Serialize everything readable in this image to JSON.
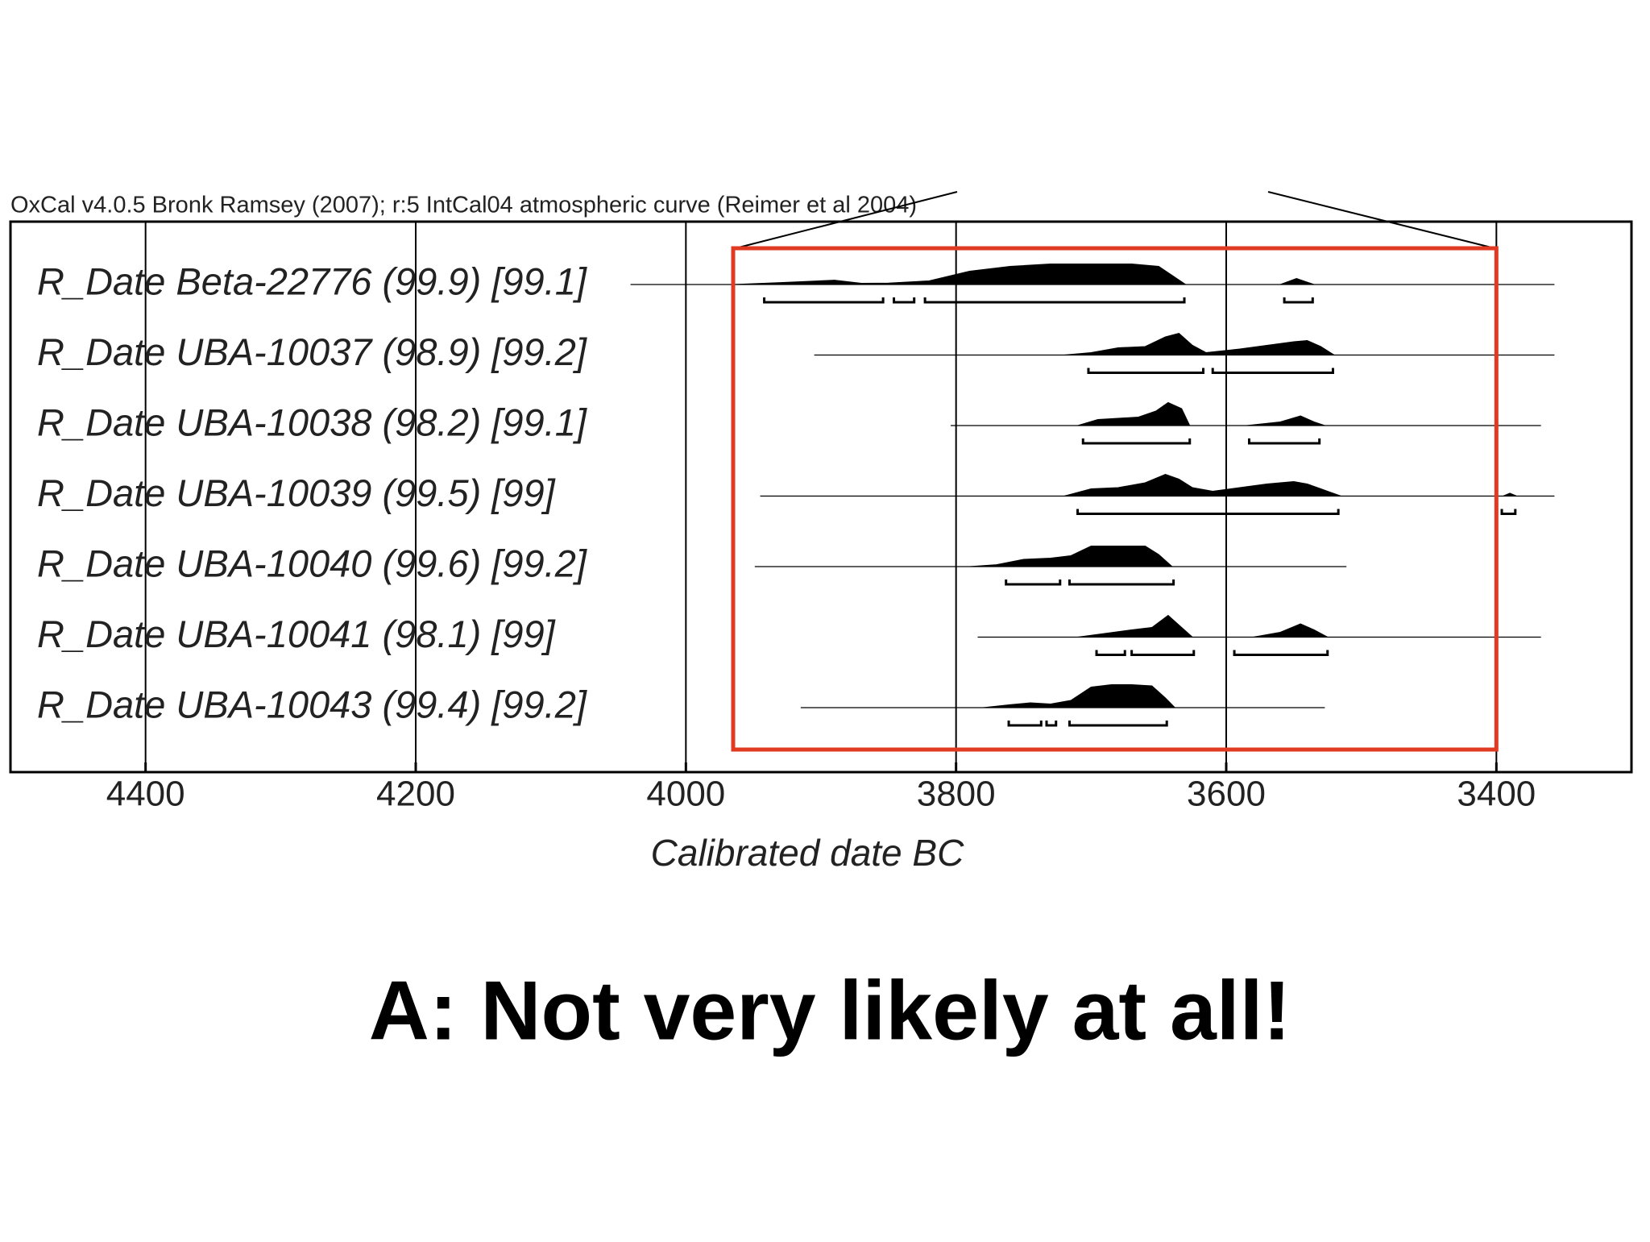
{
  "chart_data": {
    "type": "oxcal",
    "header": "OxCal v4.0.5 Bronk Ramsey (2007); r:5 IntCal04 atmospheric curve (Reimer et al 2004)",
    "xlabel": "Calibrated date BC",
    "xlim": [
      4500,
      3300
    ],
    "xticks": [
      4400,
      4200,
      4000,
      3800,
      3600,
      3400
    ],
    "grid": true,
    "color": "#000000",
    "highlight": [
      3965,
      3400
    ],
    "highlight_color": "#e03a22",
    "rows": [
      {
        "label": "R_Date Beta-22776 (99.9) [99.1]",
        "extent": [
          4041,
          3357
        ],
        "ranges": [
          [
            3942,
            3854
          ],
          [
            3846,
            3831
          ],
          [
            3823,
            3631
          ],
          [
            3557,
            3536
          ]
        ],
        "profile": {
          "x": [
            3965,
            3930,
            3890,
            3870,
            3850,
            3820,
            3790,
            3760,
            3730,
            3700,
            3670,
            3650,
            3630,
            3600,
            3560,
            3548,
            3535
          ],
          "values": [
            0,
            0.08,
            0.18,
            0.05,
            0.06,
            0.15,
            0.55,
            0.75,
            0.85,
            0.85,
            0.85,
            0.75,
            0,
            null,
            0,
            0.25,
            0
          ]
        }
      },
      {
        "label": "R_Date UBA-10037 (98.9) [99.2]",
        "extent": [
          3905,
          3357
        ],
        "ranges": [
          [
            3702,
            3617
          ],
          [
            3610,
            3521
          ]
        ],
        "profile": {
          "x": [
            3720,
            3700,
            3680,
            3660,
            3645,
            3635,
            3625,
            3615,
            3590,
            3570,
            3550,
            3540,
            3530,
            3520
          ],
          "values": [
            0,
            0.1,
            0.3,
            0.35,
            0.75,
            0.9,
            0.4,
            0.1,
            0.25,
            0.4,
            0.55,
            0.6,
            0.35,
            0
          ]
        }
      },
      {
        "label": "R_Date UBA-10038 (98.2) [99.1]",
        "extent": [
          3804,
          3367
        ],
        "ranges": [
          [
            3706,
            3627
          ],
          [
            3583,
            3531
          ]
        ],
        "profile": {
          "x": [
            3710,
            3695,
            3680,
            3665,
            3652,
            3643,
            3633,
            3627,
            3600,
            3585,
            3560,
            3545,
            3535,
            3527
          ],
          "values": [
            0,
            0.25,
            0.3,
            0.35,
            0.6,
            0.95,
            0.7,
            0,
            null,
            0,
            0.15,
            0.4,
            0.15,
            0
          ]
        }
      },
      {
        "label": "R_Date UBA-10039 (99.5) [99]",
        "extent": [
          3945,
          3357
        ],
        "ranges": [
          [
            3710,
            3517
          ],
          [
            3396,
            3386
          ]
        ],
        "profile": {
          "x": [
            3720,
            3700,
            3680,
            3660,
            3645,
            3635,
            3625,
            3610,
            3590,
            3570,
            3550,
            3540,
            3530,
            3515,
            3400,
            3395,
            3390,
            3385
          ],
          "values": [
            0,
            0.3,
            0.35,
            0.55,
            0.9,
            0.7,
            0.35,
            0.2,
            0.35,
            0.5,
            0.6,
            0.5,
            0.3,
            0,
            null,
            0,
            0.12,
            0
          ]
        }
      },
      {
        "label": "R_Date UBA-10040 (99.6) [99.2]",
        "extent": [
          3949,
          3511
        ],
        "ranges": [
          [
            3763,
            3723
          ],
          [
            3716,
            3639
          ]
        ],
        "profile": {
          "x": [
            3790,
            3770,
            3750,
            3730,
            3715,
            3700,
            3680,
            3660,
            3650,
            3640
          ],
          "values": [
            0,
            0.08,
            0.3,
            0.35,
            0.45,
            0.85,
            0.85,
            0.85,
            0.5,
            0
          ]
        }
      },
      {
        "label": "R_Date UBA-10041 (98.1) [99]",
        "extent": [
          3784,
          3367
        ],
        "ranges": [
          [
            3696,
            3675
          ],
          [
            3670,
            3624
          ],
          [
            3594,
            3525
          ]
        ],
        "profile": {
          "x": [
            3710,
            3690,
            3670,
            3655,
            3643,
            3635,
            3625,
            3600,
            3580,
            3560,
            3545,
            3535,
            3525
          ],
          "values": [
            0,
            0.15,
            0.3,
            0.4,
            0.9,
            0.5,
            0,
            null,
            0,
            0.2,
            0.55,
            0.3,
            0
          ]
        }
      },
      {
        "label": "R_Date UBA-10043 (99.4) [99.2]",
        "extent": [
          3915,
          3527
        ],
        "ranges": [
          [
            3761,
            3737
          ],
          [
            3733,
            3726
          ],
          [
            3716,
            3644
          ]
        ],
        "profile": {
          "x": [
            3780,
            3760,
            3745,
            3730,
            3715,
            3700,
            3685,
            3670,
            3655,
            3645,
            3638
          ],
          "values": [
            0,
            0.12,
            0.2,
            0.15,
            0.3,
            0.85,
            0.95,
            0.95,
            0.9,
            0.4,
            0
          ]
        }
      }
    ]
  },
  "caption": "A: Not very likely at all!"
}
